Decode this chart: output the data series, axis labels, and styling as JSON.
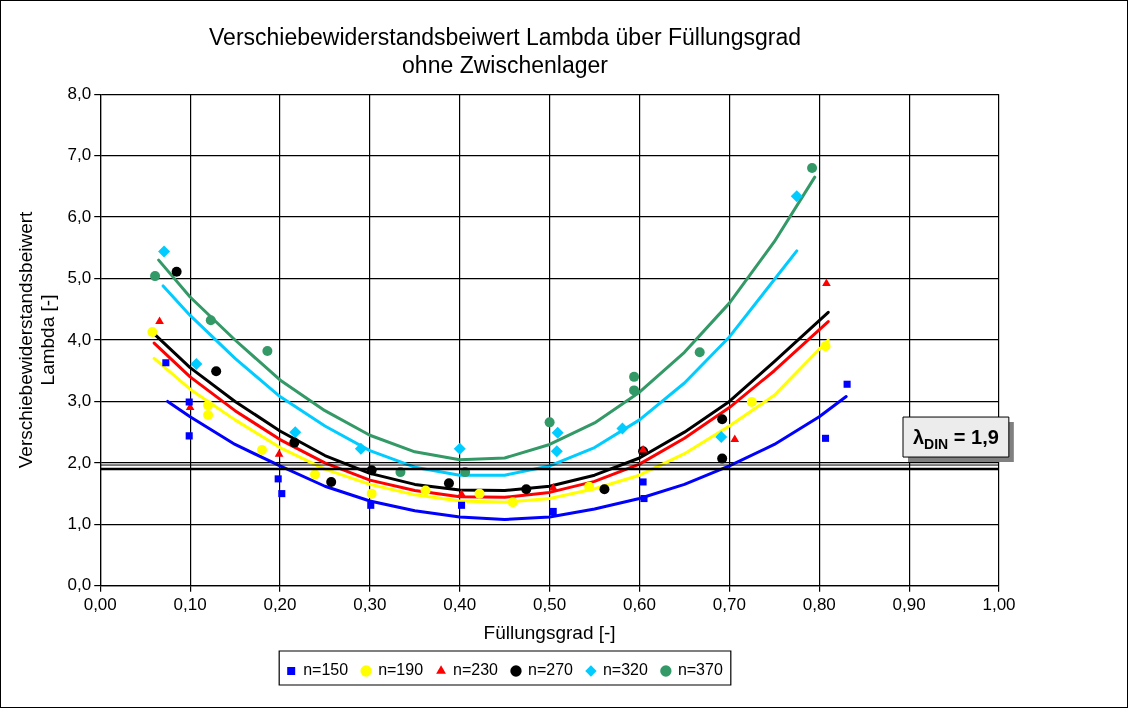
{
  "chart_data": {
    "type": "scatter",
    "title": "Verschiebewiderstandsbeiwert Lambda über Füllungsgrad",
    "subtitle": "ohne Zwischenlager",
    "xlabel": "Füllungsgrad [-]",
    "ylabel": "Verschiebewiderstandsbeiwert\nLambda [-]",
    "xlim": [
      0,
      1
    ],
    "xticks": [
      {
        "value": 0,
        "label": "0,00"
      },
      {
        "value": 0.1,
        "label": "0,10"
      },
      {
        "value": 0.2,
        "label": "0,20"
      },
      {
        "value": 0.3,
        "label": "0,30"
      },
      {
        "value": 0.4,
        "label": "0,40"
      },
      {
        "value": 0.5,
        "label": "0,50"
      },
      {
        "value": 0.6,
        "label": "0,60"
      },
      {
        "value": 0.7,
        "label": "0,70"
      },
      {
        "value": 0.8,
        "label": "0,80"
      },
      {
        "value": 0.9,
        "label": "0,90"
      },
      {
        "value": 1,
        "label": "1,00"
      }
    ],
    "ylim": [
      0,
      8
    ],
    "yticks": [
      {
        "value": 0,
        "label": "0,0"
      },
      {
        "value": 1,
        "label": "1,0"
      },
      {
        "value": 2,
        "label": "2,0"
      },
      {
        "value": 3,
        "label": "3,0"
      },
      {
        "value": 4,
        "label": "4,0"
      },
      {
        "value": 5,
        "label": "5,0"
      },
      {
        "value": 6,
        "label": "6,0"
      },
      {
        "value": 7,
        "label": "7,0"
      },
      {
        "value": 8,
        "label": "8,0"
      }
    ],
    "grid": true,
    "legend": "bottom",
    "ref_lines": [
      {
        "axis": "y",
        "value": 1.9,
        "label": "λ$_{DIN}$ = 1,9",
        "color": "#000000"
      }
    ],
    "series": [
      {
        "name": "n=150",
        "color": "#0000ff",
        "marker": "square",
        "x": [
          0.073,
          0.099,
          0.099,
          0.198,
          0.202,
          0.301,
          0.402,
          0.504,
          0.604,
          0.605,
          0.807,
          0.831
        ],
        "values": [
          3.63,
          2.99,
          2.44,
          1.74,
          1.5,
          1.31,
          1.31,
          1.21,
          1.69,
          1.42,
          2.4,
          3.28
        ]
      },
      {
        "name": "n=190",
        "color": "#ffff00",
        "marker": "circle",
        "x": [
          0.058,
          0.12,
          0.12,
          0.18,
          0.239,
          0.302,
          0.362,
          0.422,
          0.459,
          0.544,
          0.725,
          0.807
        ],
        "values": [
          4.13,
          2.94,
          2.78,
          2.21,
          1.81,
          1.5,
          1.55,
          1.5,
          1.36,
          1.61,
          2.99,
          3.9
        ]
      },
      {
        "name": "n=230",
        "color": "#ff0000",
        "marker": "triangle",
        "x": [
          0.066,
          0.1,
          0.199,
          0.402,
          0.504,
          0.604,
          0.706,
          0.808
        ],
        "values": [
          4.3,
          2.9,
          2.14,
          1.49,
          1.59,
          2.21,
          2.38,
          4.92
        ]
      },
      {
        "name": "n=270",
        "color": "#000000",
        "marker": "circle",
        "x": [
          0.085,
          0.129,
          0.216,
          0.257,
          0.302,
          0.388,
          0.474,
          0.561,
          0.604,
          0.692,
          0.692
        ],
        "values": [
          5.11,
          3.49,
          2.33,
          1.69,
          1.88,
          1.67,
          1.57,
          1.57,
          2.19,
          2.71,
          2.07
        ]
      },
      {
        "name": "n=320",
        "color": "#00ccff",
        "marker": "diamond",
        "x": [
          0.071,
          0.107,
          0.217,
          0.29,
          0.4,
          0.509,
          0.508,
          0.581,
          0.691,
          0.775
        ],
        "values": [
          5.44,
          3.61,
          2.5,
          2.23,
          2.23,
          2.49,
          2.19,
          2.56,
          2.42,
          6.34
        ]
      },
      {
        "name": "n=370",
        "color": "#339966",
        "marker": "circle",
        "x": [
          0.061,
          0.123,
          0.186,
          0.334,
          0.406,
          0.5,
          0.594,
          0.594,
          0.667,
          0.792
        ],
        "values": [
          5.04,
          4.32,
          3.82,
          1.85,
          1.85,
          2.66,
          3.4,
          3.18,
          3.8,
          6.8
        ]
      },
      {
        "type": "line",
        "color": "#0000ff",
        "marker": "none",
        "x": [
          0.075,
          0.1,
          0.15,
          0.2,
          0.25,
          0.3,
          0.35,
          0.4,
          0.45,
          0.5,
          0.55,
          0.6,
          0.65,
          0.7,
          0.75,
          0.8,
          0.83
        ],
        "values": [
          3.0,
          2.75,
          2.3,
          1.95,
          1.62,
          1.38,
          1.22,
          1.12,
          1.08,
          1.12,
          1.25,
          1.42,
          1.65,
          1.95,
          2.3,
          2.75,
          3.08
        ]
      },
      {
        "type": "line",
        "color": "#ffff00",
        "marker": "none",
        "x": [
          0.06,
          0.1,
          0.15,
          0.2,
          0.25,
          0.3,
          0.35,
          0.4,
          0.45,
          0.5,
          0.55,
          0.6,
          0.65,
          0.7,
          0.75,
          0.81
        ],
        "values": [
          3.7,
          3.2,
          2.7,
          2.25,
          1.9,
          1.65,
          1.48,
          1.38,
          1.36,
          1.42,
          1.58,
          1.8,
          2.15,
          2.6,
          3.1,
          4.0
        ]
      },
      {
        "type": "line",
        "color": "#ff0000",
        "marker": "none",
        "x": [
          0.06,
          0.1,
          0.15,
          0.2,
          0.25,
          0.3,
          0.35,
          0.4,
          0.45,
          0.5,
          0.55,
          0.6,
          0.65,
          0.7,
          0.75,
          0.81
        ],
        "values": [
          3.95,
          3.4,
          2.85,
          2.38,
          2.0,
          1.72,
          1.55,
          1.45,
          1.44,
          1.52,
          1.7,
          1.98,
          2.4,
          2.9,
          3.5,
          4.3
        ]
      },
      {
        "type": "line",
        "color": "#000000",
        "marker": "none",
        "x": [
          0.06,
          0.1,
          0.15,
          0.2,
          0.25,
          0.3,
          0.35,
          0.4,
          0.45,
          0.5,
          0.55,
          0.6,
          0.65,
          0.7,
          0.75,
          0.81
        ],
        "values": [
          4.1,
          3.55,
          3.0,
          2.52,
          2.12,
          1.83,
          1.65,
          1.56,
          1.55,
          1.62,
          1.8,
          2.08,
          2.5,
          3.0,
          3.65,
          4.45
        ]
      },
      {
        "type": "line",
        "color": "#00ccff",
        "marker": "none",
        "x": [
          0.07,
          0.1,
          0.15,
          0.2,
          0.25,
          0.3,
          0.35,
          0.4,
          0.45,
          0.5,
          0.55,
          0.6,
          0.65,
          0.7,
          0.775
        ],
        "values": [
          4.88,
          4.4,
          3.7,
          3.08,
          2.6,
          2.2,
          1.93,
          1.8,
          1.8,
          1.95,
          2.25,
          2.7,
          3.3,
          4.05,
          5.45
        ]
      },
      {
        "type": "line",
        "color": "#339966",
        "marker": "none",
        "x": [
          0.065,
          0.1,
          0.15,
          0.2,
          0.25,
          0.3,
          0.35,
          0.4,
          0.45,
          0.5,
          0.55,
          0.6,
          0.65,
          0.7,
          0.75,
          0.795
        ],
        "values": [
          5.3,
          4.7,
          4.0,
          3.35,
          2.85,
          2.45,
          2.18,
          2.05,
          2.08,
          2.3,
          2.65,
          3.15,
          3.8,
          4.6,
          5.6,
          6.65
        ]
      }
    ]
  }
}
